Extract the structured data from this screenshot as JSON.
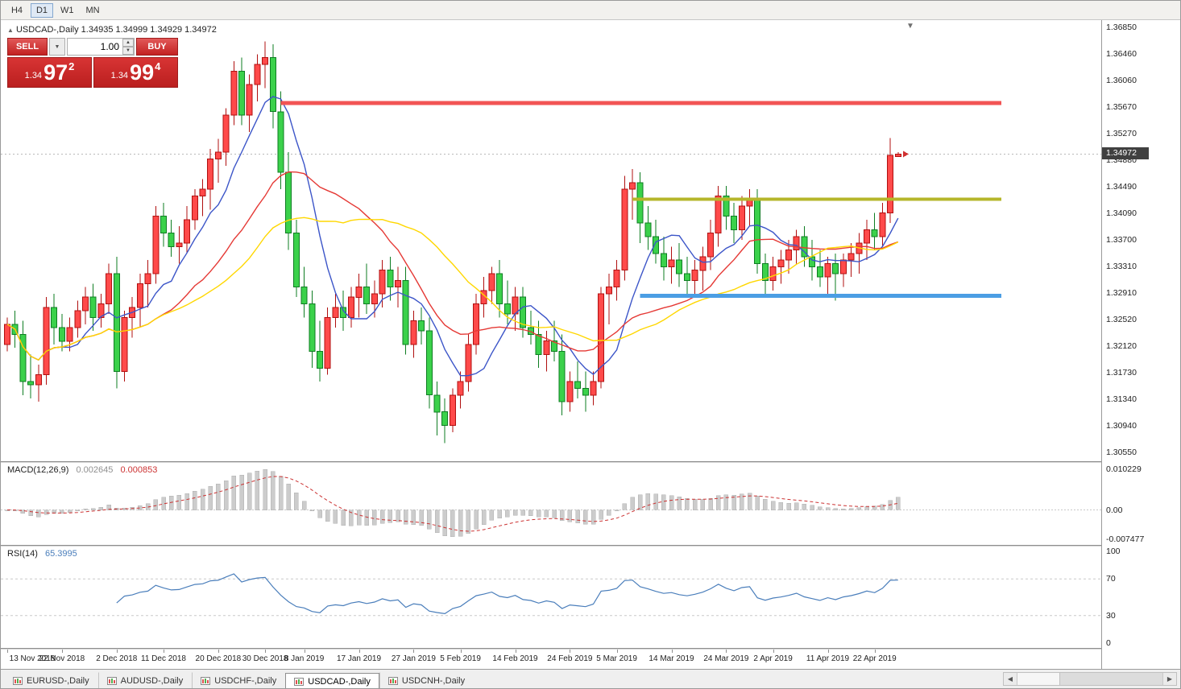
{
  "toolbar": {
    "timeframes": [
      {
        "label": "H4",
        "active": false
      },
      {
        "label": "D1",
        "active": true
      },
      {
        "label": "W1",
        "active": false
      },
      {
        "label": "MN",
        "active": false
      }
    ]
  },
  "icons": {
    "collapse": "▲",
    "dropdown": "▼",
    "spin_up": "▲",
    "spin_down": "▼",
    "shift_marker": "▼"
  },
  "chart_header": {
    "symbol": "USDCAD-,Daily",
    "ohlc": "1.34935 1.34999 1.34929 1.34972"
  },
  "one_click": {
    "sell_label": "SELL",
    "buy_label": "BUY",
    "volume": "1.00",
    "sell_price": {
      "small": "1.34",
      "big": "97",
      "sup": "2"
    },
    "buy_price": {
      "small": "1.34",
      "big": "99",
      "sup": "4"
    }
  },
  "price_axis": {
    "labels": [
      "1.36850",
      "1.36460",
      "1.36060",
      "1.35670",
      "1.35270",
      "1.34880",
      "1.34490",
      "1.34090",
      "1.33700",
      "1.33310",
      "1.32910",
      "1.32520",
      "1.32120",
      "1.31730",
      "1.31340",
      "1.30940",
      "1.30550"
    ],
    "current_price": "1.34972"
  },
  "macd_panel": {
    "name": "MACD(12,26,9)",
    "value_main": "0.002645",
    "value_signal": "0.000853",
    "axis_labels": [
      "0.010229",
      "0.00",
      "-0.007477"
    ]
  },
  "rsi_panel": {
    "name": "RSI(14)",
    "value": "65.3995",
    "axis_labels": [
      "100",
      "70",
      "30",
      "0"
    ],
    "levels": [
      70,
      30
    ]
  },
  "date_axis": [
    {
      "label": "13 Nov 2018",
      "i": 0
    },
    {
      "label": "22 Nov 2018",
      "i": 7
    },
    {
      "label": "2 Dec 2018",
      "i": 14
    },
    {
      "label": "11 Dec 2018",
      "i": 20
    },
    {
      "label": "20 Dec 2018",
      "i": 27
    },
    {
      "label": "30 Dec 2018",
      "i": 33
    },
    {
      "label": "8 Jan 2019",
      "i": 38
    },
    {
      "label": "17 Jan 2019",
      "i": 45
    },
    {
      "label": "27 Jan 2019",
      "i": 52
    },
    {
      "label": "5 Feb 2019",
      "i": 58
    },
    {
      "label": "14 Feb 2019",
      "i": 65
    },
    {
      "label": "24 Feb 2019",
      "i": 72
    },
    {
      "label": "5 Mar 2019",
      "i": 78
    },
    {
      "label": "14 Mar 2019",
      "i": 85
    },
    {
      "label": "24 Mar 2019",
      "i": 92
    },
    {
      "label": "2 Apr 2019",
      "i": 98
    },
    {
      "label": "11 Apr 2019",
      "i": 105
    },
    {
      "label": "22 Apr 2019",
      "i": 111
    }
  ],
  "tabs": [
    {
      "label": "EURUSD-,Daily",
      "active": false
    },
    {
      "label": "AUDUSD-,Daily",
      "active": false
    },
    {
      "label": "USDCHF-,Daily",
      "active": false
    },
    {
      "label": "USDCAD-,Daily",
      "active": true
    },
    {
      "label": "USDCNH-,Daily",
      "active": false
    }
  ],
  "scrollbar": {
    "left_arrow": "◀",
    "right_arrow": "▶"
  },
  "chart_data": {
    "type": "candlestick",
    "symbol": "USDCAD",
    "period": "Daily",
    "price_range": [
      1.3055,
      1.3685
    ],
    "current_price": 1.34972,
    "colors": {
      "bull": "#ff4a4a",
      "bull_border": "#b01010",
      "bear": "#3bd14b",
      "bear_border": "#0e7d22",
      "ma_fast": "#3c55c8",
      "ma_mid": "#e53935",
      "ma_slow": "#ffd700",
      "macd_hist": "#cccccc",
      "macd_signal": "#cc3333",
      "rsi": "#4a7ebb"
    },
    "hlines": [
      {
        "name": "resistance-red",
        "price": 1.3573,
        "color": "#f25454",
        "width": 5,
        "from_index": 35
      },
      {
        "name": "range-top-olive",
        "price": 1.343,
        "color": "#b5b62a",
        "width": 4,
        "from_index": 80
      },
      {
        "name": "support-blue",
        "price": 1.3287,
        "color": "#4b9ee4",
        "width": 5,
        "from_index": 81
      }
    ],
    "moving_averages": [
      {
        "period": 8,
        "color_key": "ma_fast"
      },
      {
        "period": 20,
        "color_key": "ma_mid"
      },
      {
        "period": 30,
        "color_key": "ma_slow"
      }
    ],
    "macd": {
      "fast": 12,
      "slow": 26,
      "signal": 9
    },
    "rsi": {
      "period": 14
    },
    "candles": [
      [
        1.3215,
        1.3255,
        1.3205,
        1.3245
      ],
      [
        1.3245,
        1.3265,
        1.321,
        1.323
      ],
      [
        1.323,
        1.325,
        1.314,
        1.316
      ],
      [
        1.316,
        1.32,
        1.3135,
        1.3155
      ],
      [
        1.3155,
        1.3185,
        1.313,
        1.317
      ],
      [
        1.317,
        1.3285,
        1.3155,
        1.327
      ],
      [
        1.327,
        1.329,
        1.3215,
        1.324
      ],
      [
        1.324,
        1.326,
        1.3205,
        1.322
      ],
      [
        1.322,
        1.3255,
        1.3205,
        1.324
      ],
      [
        1.324,
        1.328,
        1.3225,
        1.3265
      ],
      [
        1.3265,
        1.33,
        1.3245,
        1.3285
      ],
      [
        1.3285,
        1.3305,
        1.3235,
        1.3255
      ],
      [
        1.3255,
        1.329,
        1.324,
        1.3275
      ],
      [
        1.3275,
        1.3335,
        1.326,
        1.332
      ],
      [
        1.332,
        1.3345,
        1.315,
        1.3175
      ],
      [
        1.3175,
        1.3265,
        1.316,
        1.3255
      ],
      [
        1.3255,
        1.3285,
        1.3225,
        1.327
      ],
      [
        1.327,
        1.332,
        1.324,
        1.3305
      ],
      [
        1.3305,
        1.334,
        1.327,
        1.332
      ],
      [
        1.332,
        1.342,
        1.3305,
        1.3405
      ],
      [
        1.3405,
        1.3425,
        1.336,
        1.338
      ],
      [
        1.338,
        1.34,
        1.3345,
        1.336
      ],
      [
        1.336,
        1.339,
        1.3335,
        1.3365
      ],
      [
        1.3365,
        1.342,
        1.335,
        1.34
      ],
      [
        1.34,
        1.3445,
        1.3385,
        1.3435
      ],
      [
        1.3435,
        1.346,
        1.3405,
        1.3445
      ],
      [
        1.3445,
        1.3505,
        1.3415,
        1.349
      ],
      [
        1.349,
        1.352,
        1.3455,
        1.35
      ],
      [
        1.35,
        1.3565,
        1.348,
        1.3555
      ],
      [
        1.3555,
        1.3635,
        1.354,
        1.362
      ],
      [
        1.362,
        1.364,
        1.354,
        1.3555
      ],
      [
        1.3555,
        1.3615,
        1.353,
        1.36
      ],
      [
        1.36,
        1.3645,
        1.3575,
        1.363
      ],
      [
        1.363,
        1.3664,
        1.3595,
        1.364
      ],
      [
        1.364,
        1.366,
        1.3535,
        1.356
      ],
      [
        1.356,
        1.359,
        1.3445,
        1.347
      ],
      [
        1.347,
        1.35,
        1.3355,
        1.338
      ],
      [
        1.338,
        1.34,
        1.3285,
        1.33
      ],
      [
        1.33,
        1.333,
        1.3255,
        1.3275
      ],
      [
        1.3275,
        1.3295,
        1.318,
        1.3205
      ],
      [
        1.3205,
        1.325,
        1.316,
        1.318
      ],
      [
        1.318,
        1.327,
        1.317,
        1.3255
      ],
      [
        1.3255,
        1.329,
        1.324,
        1.327
      ],
      [
        1.327,
        1.3295,
        1.3235,
        1.3255
      ],
      [
        1.3255,
        1.33,
        1.324,
        1.3285
      ],
      [
        1.3285,
        1.332,
        1.3255,
        1.33
      ],
      [
        1.33,
        1.3335,
        1.326,
        1.3275
      ],
      [
        1.3275,
        1.331,
        1.3255,
        1.329
      ],
      [
        1.329,
        1.334,
        1.327,
        1.3325
      ],
      [
        1.3325,
        1.3345,
        1.328,
        1.33
      ],
      [
        1.33,
        1.333,
        1.327,
        1.331
      ],
      [
        1.331,
        1.333,
        1.32,
        1.3215
      ],
      [
        1.3215,
        1.3265,
        1.3195,
        1.325
      ],
      [
        1.325,
        1.327,
        1.3215,
        1.3235
      ],
      [
        1.3235,
        1.3255,
        1.312,
        1.314
      ],
      [
        1.314,
        1.316,
        1.308,
        1.3115
      ],
      [
        1.3115,
        1.3135,
        1.3069,
        1.3095
      ],
      [
        1.3095,
        1.315,
        1.3085,
        1.314
      ],
      [
        1.314,
        1.3175,
        1.312,
        1.316
      ],
      [
        1.316,
        1.323,
        1.3145,
        1.3215
      ],
      [
        1.3215,
        1.329,
        1.32,
        1.3275
      ],
      [
        1.3275,
        1.3315,
        1.3255,
        1.3295
      ],
      [
        1.3295,
        1.333,
        1.3275,
        1.332
      ],
      [
        1.332,
        1.334,
        1.3255,
        1.3275
      ],
      [
        1.3275,
        1.331,
        1.3245,
        1.326
      ],
      [
        1.326,
        1.33,
        1.3235,
        1.3285
      ],
      [
        1.3285,
        1.33,
        1.3225,
        1.324
      ],
      [
        1.324,
        1.3265,
        1.3215,
        1.323
      ],
      [
        1.323,
        1.325,
        1.318,
        1.32
      ],
      [
        1.32,
        1.3235,
        1.3175,
        1.322
      ],
      [
        1.322,
        1.325,
        1.319,
        1.3205
      ],
      [
        1.3205,
        1.323,
        1.311,
        1.313
      ],
      [
        1.313,
        1.3175,
        1.3115,
        1.316
      ],
      [
        1.316,
        1.319,
        1.3135,
        1.315
      ],
      [
        1.315,
        1.3175,
        1.3115,
        1.314
      ],
      [
        1.314,
        1.3175,
        1.3125,
        1.316
      ],
      [
        1.316,
        1.33,
        1.315,
        1.329
      ],
      [
        1.329,
        1.332,
        1.3245,
        1.33
      ],
      [
        1.33,
        1.334,
        1.328,
        1.3325
      ],
      [
        1.3325,
        1.3465,
        1.331,
        1.3445
      ],
      [
        1.3445,
        1.3475,
        1.34,
        1.3455
      ],
      [
        1.3455,
        1.347,
        1.3365,
        1.3395
      ],
      [
        1.3395,
        1.342,
        1.3355,
        1.3375
      ],
      [
        1.3375,
        1.34,
        1.3335,
        1.335
      ],
      [
        1.335,
        1.3375,
        1.331,
        1.333
      ],
      [
        1.333,
        1.336,
        1.3305,
        1.334
      ],
      [
        1.334,
        1.3365,
        1.33,
        1.332
      ],
      [
        1.332,
        1.3345,
        1.329,
        1.331
      ],
      [
        1.331,
        1.334,
        1.3285,
        1.3325
      ],
      [
        1.3325,
        1.336,
        1.3295,
        1.3345
      ],
      [
        1.3345,
        1.34,
        1.3325,
        1.338
      ],
      [
        1.338,
        1.345,
        1.336,
        1.3435
      ],
      [
        1.3435,
        1.345,
        1.3385,
        1.3405
      ],
      [
        1.3405,
        1.3425,
        1.3365,
        1.3385
      ],
      [
        1.3385,
        1.3435,
        1.337,
        1.342
      ],
      [
        1.342,
        1.3445,
        1.339,
        1.343
      ],
      [
        1.343,
        1.3445,
        1.332,
        1.3335
      ],
      [
        1.3335,
        1.335,
        1.3285,
        1.331
      ],
      [
        1.331,
        1.3345,
        1.3295,
        1.333
      ],
      [
        1.333,
        1.3355,
        1.3305,
        1.334
      ],
      [
        1.334,
        1.337,
        1.332,
        1.3355
      ],
      [
        1.3355,
        1.3385,
        1.3335,
        1.3375
      ],
      [
        1.3375,
        1.339,
        1.333,
        1.3345
      ],
      [
        1.3345,
        1.337,
        1.331,
        1.333
      ],
      [
        1.333,
        1.3355,
        1.33,
        1.3315
      ],
      [
        1.3315,
        1.3345,
        1.329,
        1.3335
      ],
      [
        1.3335,
        1.335,
        1.328,
        1.332
      ],
      [
        1.332,
        1.335,
        1.33,
        1.334
      ],
      [
        1.334,
        1.3365,
        1.3315,
        1.335
      ],
      [
        1.335,
        1.338,
        1.332,
        1.3365
      ],
      [
        1.3365,
        1.34,
        1.334,
        1.3385
      ],
      [
        1.3385,
        1.341,
        1.3355,
        1.3375
      ],
      [
        1.3375,
        1.3425,
        1.336,
        1.341
      ],
      [
        1.341,
        1.3521,
        1.3395,
        1.3495
      ],
      [
        1.34935,
        1.34999,
        1.34929,
        1.34972
      ]
    ]
  }
}
